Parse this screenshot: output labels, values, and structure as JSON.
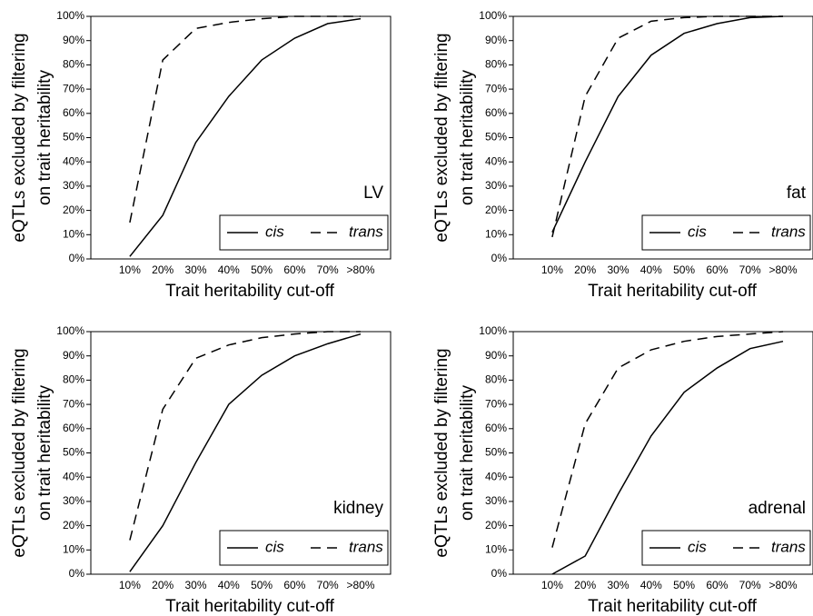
{
  "chart_data": [
    {
      "type": "line",
      "annotation": "LV",
      "y_label": [
        "eQTLs excluded by filtering",
        "on trait heritability"
      ],
      "x_label": "Trait heritability cut-off",
      "categories": [
        "10%",
        "20%",
        "30%",
        "40%",
        "50%",
        "60%",
        "70%",
        ">80%"
      ],
      "series": [
        {
          "name": "cis",
          "color": "#000000",
          "dash": "solid",
          "values": [
            1,
            18,
            48,
            67,
            82,
            91,
            97,
            99
          ]
        },
        {
          "name": "trans",
          "color": "#000000",
          "dash": "dashed",
          "values": [
            15,
            82,
            95,
            97.5,
            99,
            100,
            100,
            100
          ]
        }
      ],
      "ylim": [
        0,
        100
      ],
      "yticks": [
        {
          "value": 0,
          "label": "0%"
        },
        {
          "value": 10,
          "label": "10%"
        },
        {
          "value": 20,
          "label": "20%"
        },
        {
          "value": 30,
          "label": "30%"
        },
        {
          "value": 40,
          "label": "40%"
        },
        {
          "value": 50,
          "label": "50%"
        },
        {
          "value": 60,
          "label": "60%"
        },
        {
          "value": 70,
          "label": "70%"
        },
        {
          "value": 80,
          "label": "80%"
        },
        {
          "value": 90,
          "label": "90%"
        },
        {
          "value": 100,
          "label": "100%"
        }
      ],
      "legend": "lower right",
      "grid": false
    },
    {
      "type": "line",
      "annotation": "fat",
      "y_label": [
        "eQTLs excluded by filtering",
        "on trait heritability"
      ],
      "x_label": "Trait heritability cut-off",
      "categories": [
        "10%",
        "20%",
        "30%",
        "40%",
        "50%",
        "60%",
        "70%",
        ">80%"
      ],
      "series": [
        {
          "name": "cis",
          "color": "#000000",
          "dash": "solid",
          "values": [
            11,
            40,
            67,
            84,
            93,
            97,
            99.5,
            100
          ]
        },
        {
          "name": "trans",
          "color": "#000000",
          "dash": "dashed",
          "values": [
            9,
            67,
            91,
            98,
            99.5,
            100,
            100,
            100
          ]
        }
      ],
      "ylim": [
        0,
        100
      ],
      "yticks": [
        {
          "value": 0,
          "label": "0%"
        },
        {
          "value": 10,
          "label": "10%"
        },
        {
          "value": 20,
          "label": "20%"
        },
        {
          "value": 30,
          "label": "30%"
        },
        {
          "value": 40,
          "label": "40%"
        },
        {
          "value": 50,
          "label": "50%"
        },
        {
          "value": 60,
          "label": "60%"
        },
        {
          "value": 70,
          "label": "70%"
        },
        {
          "value": 80,
          "label": "80%"
        },
        {
          "value": 90,
          "label": "90%"
        },
        {
          "value": 100,
          "label": "100%"
        }
      ],
      "legend": "lower right",
      "grid": false
    },
    {
      "type": "line",
      "annotation": "kidney",
      "y_label": [
        "eQTLs excluded by filtering",
        "on trait heritability"
      ],
      "x_label": "Trait heritability cut-off",
      "categories": [
        "10%",
        "20%",
        "30%",
        "40%",
        "50%",
        "60%",
        "70%",
        ">80%"
      ],
      "series": [
        {
          "name": "cis",
          "color": "#000000",
          "dash": "solid",
          "values": [
            1,
            20,
            46,
            70,
            82,
            90,
            95,
            99
          ]
        },
        {
          "name": "trans",
          "color": "#000000",
          "dash": "dashed",
          "values": [
            14,
            68,
            89,
            94.5,
            97.5,
            99,
            100,
            100
          ]
        }
      ],
      "ylim": [
        0,
        100
      ],
      "yticks": [
        {
          "value": 0,
          "label": "0%"
        },
        {
          "value": 10,
          "label": "10%"
        },
        {
          "value": 20,
          "label": "20%"
        },
        {
          "value": 30,
          "label": "30%"
        },
        {
          "value": 40,
          "label": "40%"
        },
        {
          "value": 50,
          "label": "50%"
        },
        {
          "value": 60,
          "label": "60%"
        },
        {
          "value": 70,
          "label": "70%"
        },
        {
          "value": 80,
          "label": "80%"
        },
        {
          "value": 90,
          "label": "90%"
        },
        {
          "value": 100,
          "label": "100%"
        }
      ],
      "legend": "lower right",
      "grid": false
    },
    {
      "type": "line",
      "annotation": "adrenal",
      "y_label": [
        "eQTLs excluded by filtering",
        "on trait heritability"
      ],
      "x_label": "Trait heritability cut-off",
      "categories": [
        "10%",
        "20%",
        "30%",
        "40%",
        "50%",
        "60%",
        "70%",
        ">80%"
      ],
      "series": [
        {
          "name": "cis",
          "color": "#000000",
          "dash": "solid",
          "values": [
            0,
            7.5,
            33,
            57,
            75,
            85,
            93,
            96
          ]
        },
        {
          "name": "trans",
          "color": "#000000",
          "dash": "dashed",
          "values": [
            11,
            62,
            85,
            92.5,
            96,
            98,
            99,
            100
          ]
        }
      ],
      "ylim": [
        0,
        100
      ],
      "yticks": [
        {
          "value": 0,
          "label": "0%"
        },
        {
          "value": 10,
          "label": "10%"
        },
        {
          "value": 20,
          "label": "20%"
        },
        {
          "value": 30,
          "label": "30%"
        },
        {
          "value": 40,
          "label": "40%"
        },
        {
          "value": 50,
          "label": "50%"
        },
        {
          "value": 60,
          "label": "60%"
        },
        {
          "value": 70,
          "label": "70%"
        },
        {
          "value": 80,
          "label": "80%"
        },
        {
          "value": 90,
          "label": "90%"
        },
        {
          "value": 100,
          "label": "100%"
        }
      ],
      "legend": "lower right",
      "grid": false
    }
  ]
}
